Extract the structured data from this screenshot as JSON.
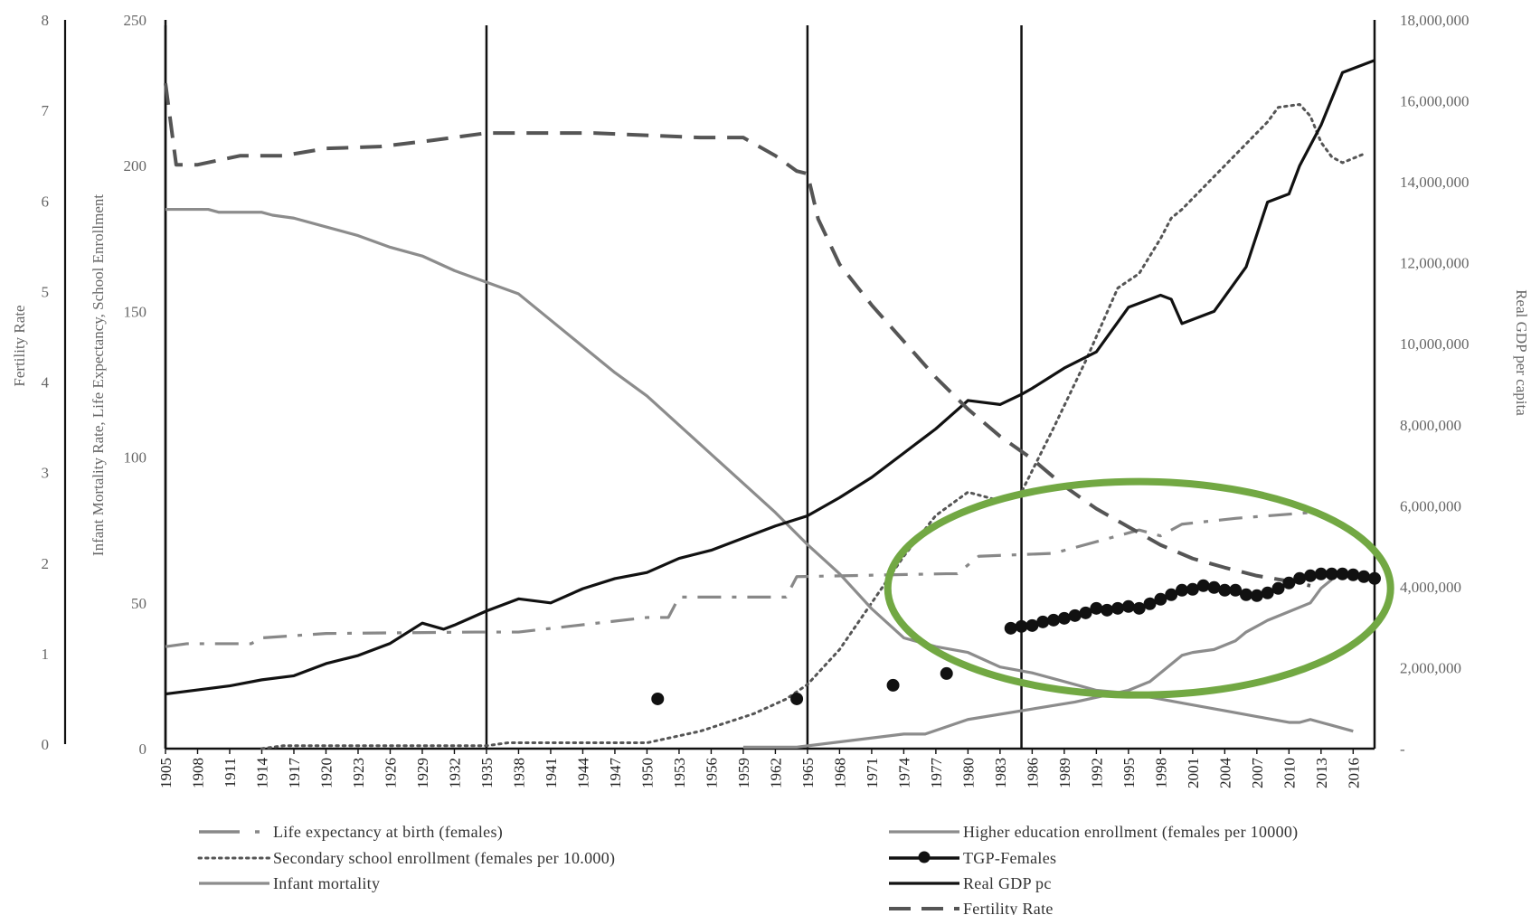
{
  "chart_data": {
    "type": "line",
    "axes": {
      "fertility": {
        "label": "Fertility Rate",
        "ticks": [
          "0",
          "1",
          "2",
          "3",
          "4",
          "5",
          "6",
          "7",
          "8"
        ],
        "range": [
          0,
          8
        ]
      },
      "left": {
        "label": "Infant Mortality Rate, Life Expectancy, School Enrollment",
        "ticks": [
          "0",
          "50",
          "100",
          "150",
          "200",
          "250"
        ],
        "range": [
          0,
          250
        ]
      },
      "right": {
        "label": "Real GDP per capita",
        "ticks": [
          "-",
          "2,000,000",
          "4,000,000",
          "6,000,000",
          "8,000,000",
          "10,000,000",
          "12,000,000",
          "14,000,000",
          "16,000,000",
          "18,000,000"
        ],
        "range": [
          0,
          18000000
        ]
      },
      "x": {
        "range": [
          1905,
          2018
        ],
        "tick_start": 1905,
        "tick_step": 3,
        "tick_end": 2016
      }
    },
    "vertical_lines": [
      1905,
      1935,
      1965,
      1985
    ],
    "highlight": {
      "shape": "ellipse",
      "color": "#72a843",
      "center_year": 1996,
      "center_value": 55
    },
    "series": [
      {
        "name": "Life expectancy at birth (females)",
        "axis": "left",
        "style": "dashdot",
        "color": "#888888",
        "x": [
          1905,
          1907,
          1913,
          1914,
          1920,
          1934,
          1938,
          1950,
          1952,
          1953,
          1963,
          1964,
          1978,
          1979,
          1980,
          1981,
          1988,
          1994,
          1995,
          1996,
          1998,
          2000,
          2005,
          2012
        ],
        "y": [
          35,
          36,
          36,
          38,
          39.5,
          40,
          40,
          45,
          45,
          52,
          52,
          59,
          60,
          60,
          63,
          66,
          67,
          73,
          74,
          75,
          73,
          77,
          79,
          81
        ]
      },
      {
        "name": "Higher education enrollment (females per 10000)",
        "axis": "left",
        "style": "solid",
        "color": "#8c8c8c",
        "x": [
          1959,
          1964,
          1974,
          1976,
          1980,
          1990,
          1995,
          1997,
          2000,
          2001,
          2003,
          2005,
          2006,
          2008,
          2010,
          2012,
          2013,
          2014
        ],
        "y": [
          0.5,
          0.5,
          5,
          5,
          10,
          16,
          20,
          23,
          32,
          33,
          34,
          37,
          40,
          44,
          47,
          50,
          55,
          58
        ]
      },
      {
        "name": "Secondary school enrollment (females per 10.000)",
        "axis": "left",
        "style": "dotted",
        "color": "#555555",
        "x": [
          1914,
          1916,
          1920,
          1935,
          1937,
          1950,
          1955,
          1960,
          1963,
          1965,
          1968,
          1971,
          1974,
          1977,
          1980,
          1983,
          1985,
          1988,
          1991,
          1994,
          1996,
          1998,
          1999,
          2000,
          2008,
          2009,
          2011,
          2012,
          2013,
          2014,
          2015,
          2017
        ],
        "y": [
          0,
          1,
          1,
          1,
          2,
          2,
          6,
          12,
          17,
          22,
          34,
          50,
          66,
          80,
          88,
          85,
          88,
          110,
          133,
          158,
          163,
          175,
          182,
          185,
          215,
          220,
          221,
          217,
          208,
          203,
          201,
          204
        ]
      },
      {
        "name": "TGP-Females",
        "axis": "fertility",
        "style": "solid-markers",
        "color": "#111111",
        "x": [
          1951,
          1964,
          1973,
          1978,
          1984,
          1985,
          1986,
          1987,
          1988,
          1989,
          1990,
          1991,
          1992,
          1993,
          1994,
          1995,
          1996,
          1997,
          1998,
          1999,
          2000,
          2001,
          2002,
          2003,
          2004,
          2005,
          2006,
          2007,
          2008,
          2009,
          2010,
          2011,
          2012,
          2013,
          2014,
          2015,
          2016,
          2017,
          2018
        ],
        "y": [
          0.5,
          0.5,
          0.65,
          0.78,
          1.28,
          1.3,
          1.31,
          1.35,
          1.37,
          1.39,
          1.42,
          1.45,
          1.5,
          1.48,
          1.5,
          1.52,
          1.5,
          1.55,
          1.6,
          1.65,
          1.7,
          1.71,
          1.75,
          1.73,
          1.7,
          1.7,
          1.65,
          1.64,
          1.67,
          1.72,
          1.78,
          1.83,
          1.86,
          1.88,
          1.88,
          1.88,
          1.87,
          1.85,
          1.83
        ]
      },
      {
        "name": "Infant mortality",
        "axis": "left",
        "style": "solid",
        "color": "#8c8c8c",
        "x": [
          1905,
          1909,
          1910,
          1914,
          1915,
          1917,
          1920,
          1923,
          1926,
          1929,
          1932,
          1935,
          1938,
          1941,
          1944,
          1947,
          1950,
          1953,
          1956,
          1959,
          1962,
          1965,
          1968,
          1971,
          1974,
          1977,
          1980,
          1983,
          1986,
          1989,
          1992,
          1995,
          1998,
          2001,
          2004,
          2007,
          2010,
          2011,
          2012,
          2013,
          2014,
          2015,
          2016
        ],
        "y": [
          185,
          185,
          184,
          184,
          183,
          182,
          179,
          176,
          172,
          169,
          164,
          160,
          156,
          147,
          138,
          129,
          121,
          111,
          101,
          91,
          81,
          70,
          60,
          48,
          38,
          35,
          33,
          28,
          26,
          23,
          20,
          19,
          17,
          15,
          13,
          11,
          9,
          9,
          10,
          9,
          8,
          7,
          6
        ]
      },
      {
        "name": "Real GDP pc",
        "axis": "right",
        "style": "solid",
        "color": "#111111",
        "x": [
          1905,
          1908,
          1911,
          1914,
          1917,
          1920,
          1923,
          1926,
          1929,
          1931,
          1932,
          1935,
          1938,
          1941,
          1944,
          1947,
          1950,
          1953,
          1956,
          1959,
          1962,
          1965,
          1968,
          1971,
          1974,
          1977,
          1980,
          1983,
          1985,
          1986,
          1989,
          1992,
          1995,
          1998,
          1999,
          2000,
          2001,
          2003,
          2006,
          2008,
          2010,
          2011,
          2013,
          2015,
          2018
        ],
        "y": [
          1350000,
          1450000,
          1550000,
          1700000,
          1800000,
          2100000,
          2300000,
          2600000,
          3100000,
          2950000,
          3050000,
          3400000,
          3700000,
          3600000,
          3950000,
          4200000,
          4350000,
          4700000,
          4900000,
          5200000,
          5500000,
          5750000,
          6200000,
          6700000,
          7300000,
          7900000,
          8600000,
          8500000,
          8750000,
          8900000,
          9400000,
          9800000,
          10900000,
          11200000,
          11100000,
          10500000,
          10600000,
          10800000,
          11900000,
          13500000,
          13700000,
          14400000,
          15400000,
          16700000,
          17000000
        ]
      },
      {
        "name": "Fertility Rate",
        "axis": "fertility",
        "style": "dashed",
        "color": "#555555",
        "x": [
          1905,
          1906,
          1908,
          1912,
          1916,
          1920,
          1925,
          1930,
          1935,
          1945,
          1955,
          1959,
          1962,
          1964,
          1965,
          1966,
          1968,
          1971,
          1974,
          1977,
          1980,
          1983,
          1986,
          1989,
          1992,
          1995,
          1998,
          2001,
          2004,
          2007,
          2010,
          2012
        ],
        "y": [
          7.3,
          6.4,
          6.4,
          6.5,
          6.5,
          6.58,
          6.6,
          6.67,
          6.75,
          6.75,
          6.7,
          6.7,
          6.5,
          6.33,
          6.3,
          5.8,
          5.3,
          4.85,
          4.45,
          4.05,
          3.7,
          3.4,
          3.15,
          2.85,
          2.6,
          2.4,
          2.2,
          2.05,
          1.95,
          1.86,
          1.8,
          1.75
        ]
      }
    ],
    "legend": {
      "left_items": [
        {
          "label": "Life expectancy at birth (females)",
          "style": "dashdot",
          "color": "#888888"
        },
        {
          "label": "Secondary school enrollment (females per 10.000)",
          "style": "dotted",
          "color": "#555555"
        },
        {
          "label": "Infant mortality",
          "style": "solid",
          "color": "#8c8c8c"
        }
      ],
      "right_items": [
        {
          "label": "Higher education enrollment (females per 10000)",
          "style": "solid",
          "color": "#8c8c8c"
        },
        {
          "label": "TGP-Females",
          "style": "solid-markers",
          "color": "#111111"
        },
        {
          "label": "Real GDP pc",
          "style": "solid",
          "color": "#111111"
        },
        {
          "label": "Fertility Rate",
          "style": "dashed",
          "color": "#555555"
        }
      ]
    }
  }
}
